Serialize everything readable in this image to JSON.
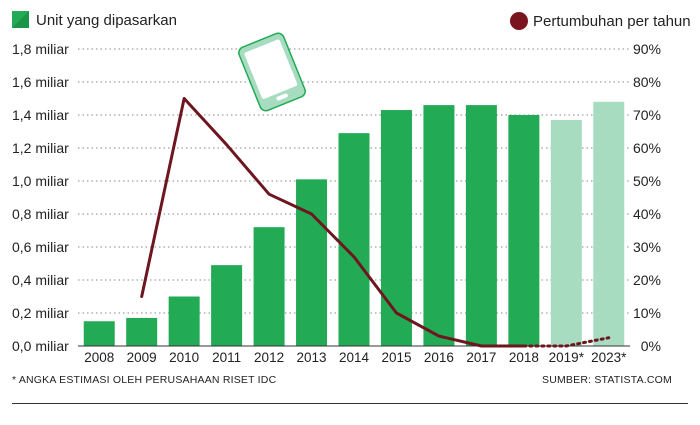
{
  "chart_data": {
    "type": "bar",
    "categories": [
      "2008",
      "2009",
      "2010",
      "2011",
      "2012",
      "2013",
      "2014",
      "2015",
      "2016",
      "2017",
      "2018",
      "2019*",
      "2023*"
    ],
    "series": [
      {
        "name": "Unit yang dipasarkan",
        "kind": "bar",
        "axis": "left",
        "values": [
          0.15,
          0.17,
          0.3,
          0.49,
          0.72,
          1.01,
          1.29,
          1.43,
          1.46,
          1.46,
          1.4,
          1.37,
          1.48
        ],
        "estimated": [
          false,
          false,
          false,
          false,
          false,
          false,
          false,
          false,
          false,
          false,
          false,
          true,
          true
        ]
      },
      {
        "name": "Pertumbuhan per tahun",
        "kind": "line",
        "axis": "right",
        "values": [
          null,
          15,
          75,
          61,
          46,
          40,
          27,
          10,
          3,
          0,
          0,
          0,
          2.5
        ],
        "estimated": [
          false,
          false,
          false,
          false,
          false,
          false,
          false,
          false,
          false,
          false,
          false,
          true,
          true
        ]
      }
    ],
    "y_left": {
      "lim": [
        0,
        1.8
      ],
      "ticks": [
        "0,0 miliar",
        "0,2 miliar",
        "0,4 miliar",
        "0,6 miliar",
        "0,8 miliar",
        "1,0 miliar",
        "1,2 miliar",
        "1,4 miliar",
        "1,6 miliar",
        "1,8 miliar"
      ]
    },
    "y_right": {
      "lim": [
        0,
        90
      ],
      "ticks": [
        "0%",
        "10%",
        "20%",
        "30%",
        "40%",
        "50%",
        "60%",
        "70%",
        "80%",
        "90%"
      ]
    },
    "legend": {
      "bar_label": "Unit yang dipasarkan",
      "line_label": "Pertumbuhan per tahun",
      "placement": "top"
    },
    "grid": "horizontal dotted",
    "colors": {
      "bar": "#22aa55",
      "bar_estimated": "#a8dcc0",
      "line": "#6e1620",
      "legend_dot": "#7a1520"
    },
    "decoration": "phone-icon"
  },
  "footnote": "* ANGKA ESTIMASI OLEH PERUSAHAAN RISET IDC",
  "source": "SUMBER: STATISTA.COM"
}
